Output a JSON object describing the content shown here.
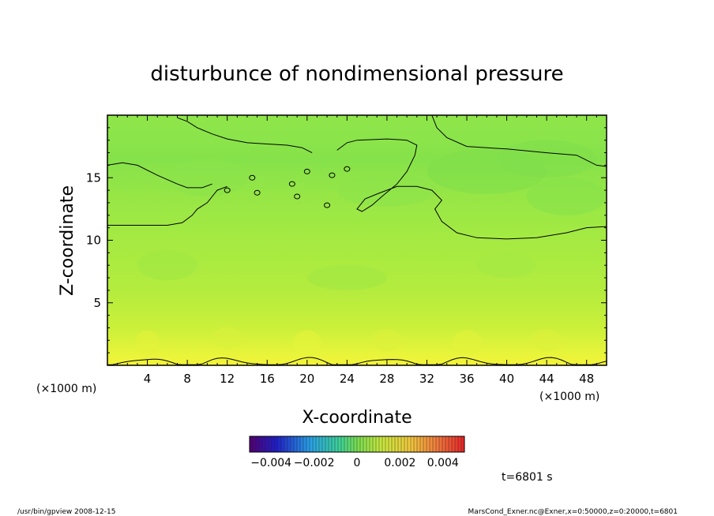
{
  "chart_data": {
    "type": "heatmap",
    "title": "disturbunce of nondimensional pressure",
    "xlabel": "X-coordinate",
    "ylabel": "Z-coordinate",
    "x_unit_left": "(×1000 m)",
    "x_unit_right": "(×1000 m)",
    "xlim": [
      0,
      50
    ],
    "ylim": [
      0,
      20
    ],
    "x_ticks": [
      4,
      8,
      12,
      16,
      20,
      24,
      28,
      32,
      36,
      40,
      44,
      48
    ],
    "x_tick_labels": [
      "4",
      "8",
      "12",
      "16",
      "20",
      "24",
      "28",
      "32",
      "36",
      "40",
      "44",
      "48"
    ],
    "y_ticks": [
      5,
      10,
      15
    ],
    "y_tick_labels": [
      "5",
      "10",
      "15"
    ],
    "colorbar": {
      "range": [
        -0.005,
        0.005
      ],
      "tick_labels": [
        "−0.004",
        "−0.002",
        "0",
        "0.002",
        "0.004"
      ],
      "tick_values": [
        -0.004,
        -0.002,
        0,
        0.002,
        0.004
      ]
    },
    "field_description_levels": {
      "bottom_z0": 0.0012,
      "z1": 0.0009,
      "z2": 0.0007,
      "z5": 0.0004,
      "z10": 0.0002,
      "z15": -0.0003,
      "top_z20": -0.0002
    },
    "contour_value": 0,
    "time_label": "t=6801 s",
    "grid": false
  },
  "footer": {
    "left": "/usr/bin/gpview   2008-12-15",
    "right": "MarsCond_Exner.nc@Exner,x=0:50000,z=0:20000,t=6801"
  },
  "colors": {
    "background": "#ffffff",
    "frame": "#000000",
    "contour": "#000000"
  }
}
